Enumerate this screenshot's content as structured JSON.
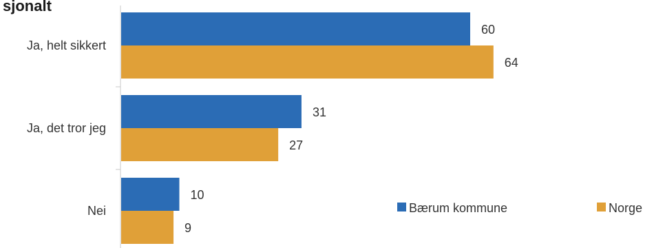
{
  "chart_data": {
    "type": "bar",
    "orientation": "horizontal",
    "title": "sjonalt",
    "categories": [
      "Ja, helt sikkert",
      "Ja, det tror jeg",
      "Nei"
    ],
    "series": [
      {
        "name": "Bærum kommune",
        "values": [
          60,
          31,
          10
        ],
        "color": "#2b6cb5"
      },
      {
        "name": "Norge",
        "values": [
          64,
          27,
          9
        ],
        "color": "#e0a038"
      }
    ],
    "xlim": [
      0,
      100
    ],
    "grid": false,
    "legend": "bottom-right"
  }
}
